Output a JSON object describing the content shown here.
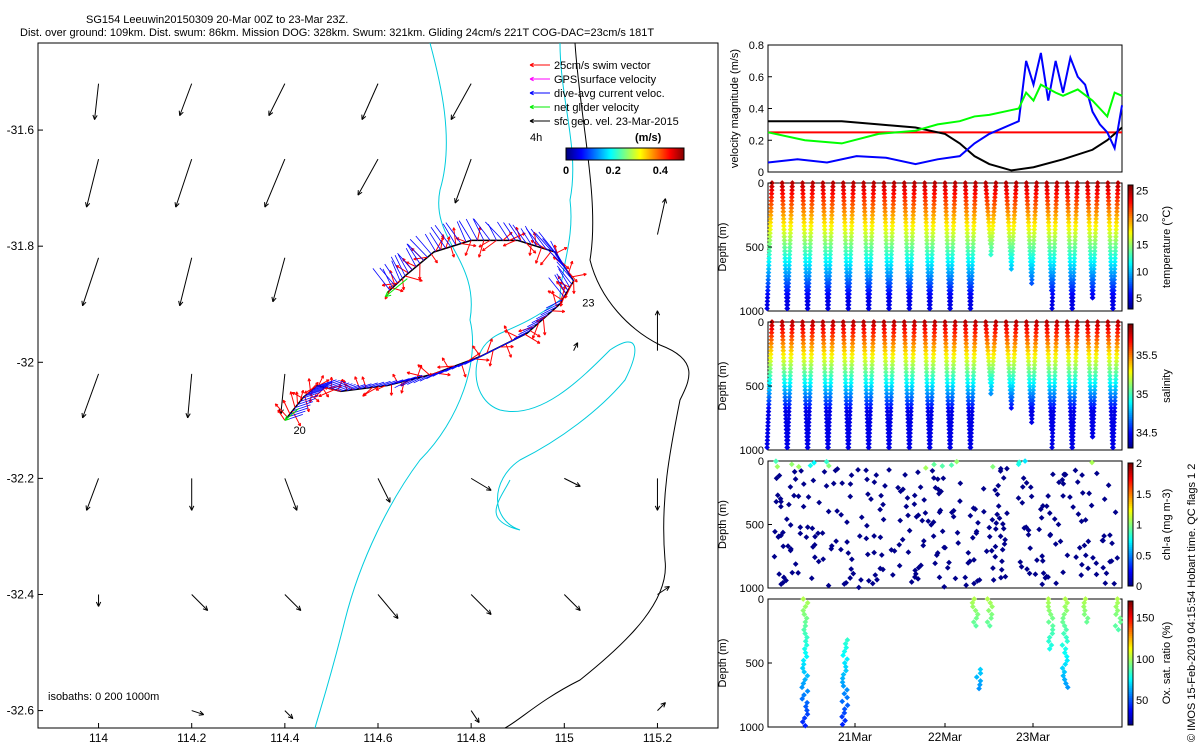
{
  "header": {
    "title": "SG154 Leeuwin20150309 20-Mar 00Z to 23-Mar 23Z.",
    "subtitle": "Dist. over ground: 109km. Dist. swum: 86km. Mission DOG: 328km. Swum: 321km. Gliding 24cm/s 221T COG-DAC=23cm/s 181T"
  },
  "side_note": "© IMOS 15-Feb-2019 04:15:54 Hobart time. QC flags 1  2",
  "chart_data": [
    {
      "type": "scatter",
      "name": "glider-track-map",
      "xticks": [
        "114",
        "114.2",
        "114.4",
        "114.6",
        "114.8",
        "115",
        "115.2"
      ],
      "yticks": [
        "-31.6",
        "-31.8",
        "-32",
        "-32.2",
        "-32.4",
        "-32.6"
      ],
      "xlim": [
        113.87,
        115.33
      ],
      "ylim": [
        -32.63,
        -31.45
      ],
      "legend": {
        "position": "top-right",
        "entries": [
          {
            "label": "25cm/s swim vector",
            "color": "#ff0000"
          },
          {
            "label": "GPS surface velocity",
            "color": "#ff00ff"
          },
          {
            "label": "dive-avg current veloc.",
            "color": "#0000ff"
          },
          {
            "label": "net glider velocity",
            "color": "#00ee00"
          },
          {
            "label": "sfc geo. vel. 23-Mar-2015",
            "color": "#000000"
          }
        ],
        "interval_label": "4h",
        "colorbar_title": "(m/s)",
        "colorbar_ticks": [
          "0",
          "0.2",
          "0.4"
        ],
        "colorbar_range": [
          0,
          0.5
        ]
      },
      "isobath_note": "isobaths: 0   200  1000m",
      "track_labels": [
        {
          "text": "20",
          "lon": 114.41,
          "lat": -32.11
        },
        {
          "text": "23",
          "lon": 115.03,
          "lat": -31.89
        }
      ],
      "track": [
        {
          "lon": 114.4,
          "lat": -32.1
        },
        {
          "lon": 114.44,
          "lat": -32.06
        },
        {
          "lon": 114.47,
          "lat": -32.04
        },
        {
          "lon": 114.52,
          "lat": -32.05
        },
        {
          "lon": 114.62,
          "lat": -32.04
        },
        {
          "lon": 114.72,
          "lat": -32.02
        },
        {
          "lon": 114.82,
          "lat": -31.99
        },
        {
          "lon": 114.92,
          "lat": -31.95
        },
        {
          "lon": 114.99,
          "lat": -31.9
        },
        {
          "lon": 115.02,
          "lat": -31.86
        },
        {
          "lon": 114.98,
          "lat": -31.81
        },
        {
          "lon": 114.9,
          "lat": -31.79
        },
        {
          "lon": 114.8,
          "lat": -31.79
        },
        {
          "lon": 114.72,
          "lat": -31.81
        },
        {
          "lon": 114.66,
          "lat": -31.85
        },
        {
          "lon": 114.62,
          "lat": -31.88
        }
      ],
      "surface_vectors": [
        {
          "lon": 114.0,
          "lat": -31.52,
          "u": -0.01,
          "v": -0.09
        },
        {
          "lon": 114.2,
          "lat": -31.52,
          "u": -0.03,
          "v": -0.08
        },
        {
          "lon": 114.4,
          "lat": -31.52,
          "u": -0.04,
          "v": -0.08
        },
        {
          "lon": 114.6,
          "lat": -31.52,
          "u": -0.04,
          "v": -0.09
        },
        {
          "lon": 114.8,
          "lat": -31.52,
          "u": -0.05,
          "v": -0.09
        },
        {
          "lon": 114.0,
          "lat": -31.65,
          "u": -0.03,
          "v": -0.12
        },
        {
          "lon": 114.2,
          "lat": -31.65,
          "u": -0.04,
          "v": -0.12
        },
        {
          "lon": 114.4,
          "lat": -31.65,
          "u": -0.05,
          "v": -0.12
        },
        {
          "lon": 114.6,
          "lat": -31.65,
          "u": -0.05,
          "v": -0.09
        },
        {
          "lon": 114.8,
          "lat": -31.65,
          "u": -0.04,
          "v": -0.11
        },
        {
          "lon": 114.0,
          "lat": -31.82,
          "u": -0.04,
          "v": -0.12
        },
        {
          "lon": 114.2,
          "lat": -31.82,
          "u": -0.03,
          "v": -0.12
        },
        {
          "lon": 114.4,
          "lat": -31.82,
          "u": -0.03,
          "v": -0.11
        },
        {
          "lon": 115.2,
          "lat": -31.78,
          "u": 0.02,
          "v": 0.09
        },
        {
          "lon": 114.0,
          "lat": -32.02,
          "u": -0.04,
          "v": -0.11
        },
        {
          "lon": 114.2,
          "lat": -32.02,
          "u": -0.01,
          "v": -0.11
        },
        {
          "lon": 114.4,
          "lat": -32.02,
          "u": -0.01,
          "v": -0.1
        },
        {
          "lon": 115.2,
          "lat": -31.98,
          "u": 0.0,
          "v": 0.1
        },
        {
          "lon": 115.02,
          "lat": -31.98,
          "u": 0.01,
          "v": 0.02
        },
        {
          "lon": 114.0,
          "lat": -32.2,
          "u": -0.03,
          "v": -0.08
        },
        {
          "lon": 114.2,
          "lat": -32.2,
          "u": 0.0,
          "v": -0.08
        },
        {
          "lon": 114.4,
          "lat": -32.2,
          "u": 0.03,
          "v": -0.08
        },
        {
          "lon": 114.6,
          "lat": -32.2,
          "u": 0.03,
          "v": -0.06
        },
        {
          "lon": 114.8,
          "lat": -32.2,
          "u": 0.05,
          "v": -0.03
        },
        {
          "lon": 115.0,
          "lat": -32.2,
          "u": 0.04,
          "v": -0.02
        },
        {
          "lon": 115.2,
          "lat": -32.2,
          "u": 0.0,
          "v": -0.08
        },
        {
          "lon": 114.0,
          "lat": -32.4,
          "u": 0.0,
          "v": -0.03
        },
        {
          "lon": 114.2,
          "lat": -32.4,
          "u": 0.04,
          "v": -0.04
        },
        {
          "lon": 114.4,
          "lat": -32.4,
          "u": 0.04,
          "v": -0.04
        },
        {
          "lon": 114.6,
          "lat": -32.4,
          "u": 0.05,
          "v": -0.06
        },
        {
          "lon": 114.8,
          "lat": -32.4,
          "u": 0.05,
          "v": -0.05
        },
        {
          "lon": 115.0,
          "lat": -32.4,
          "u": 0.04,
          "v": -0.04
        },
        {
          "lon": 115.2,
          "lat": -32.4,
          "u": 0.03,
          "v": 0.02
        },
        {
          "lon": 114.2,
          "lat": -32.6,
          "u": 0.03,
          "v": -0.01
        },
        {
          "lon": 114.4,
          "lat": -32.6,
          "u": 0.02,
          "v": -0.02
        },
        {
          "lon": 114.8,
          "lat": -32.6,
          "u": 0.02,
          "v": -0.03
        },
        {
          "lon": 115.2,
          "lat": -32.6,
          "u": 0.02,
          "v": 0.02
        }
      ]
    },
    {
      "type": "line",
      "name": "velocity-magnitude",
      "ylabel": "velocity magnitude (m/s)",
      "yticks": [
        "0",
        "0.2",
        "0.4",
        "0.6",
        "0.8"
      ],
      "ylim": [
        0,
        0.8
      ],
      "xlim": [
        0,
        96
      ],
      "series": [
        {
          "color": "#ff0000",
          "x": [
            0,
            96
          ],
          "y": [
            0.25,
            0.25
          ]
        },
        {
          "color": "#000000",
          "x": [
            0,
            10,
            20,
            30,
            40,
            48,
            52,
            56,
            60,
            66,
            72,
            80,
            88,
            92,
            96
          ],
          "y": [
            0.32,
            0.32,
            0.32,
            0.3,
            0.28,
            0.24,
            0.18,
            0.1,
            0.05,
            0.01,
            0.03,
            0.08,
            0.14,
            0.2,
            0.28
          ]
        },
        {
          "color": "#0000ff",
          "x": [
            0,
            8,
            16,
            24,
            32,
            40,
            46,
            52,
            56,
            60,
            64,
            68,
            70,
            72,
            74,
            76,
            78,
            80,
            82,
            84,
            86,
            88,
            90,
            92,
            94,
            96
          ],
          "y": [
            0.06,
            0.08,
            0.06,
            0.1,
            0.09,
            0.05,
            0.08,
            0.1,
            0.18,
            0.24,
            0.28,
            0.32,
            0.7,
            0.55,
            0.75,
            0.45,
            0.7,
            0.5,
            0.72,
            0.6,
            0.55,
            0.38,
            0.3,
            0.25,
            0.15,
            0.42
          ]
        },
        {
          "color": "#00ff00",
          "x": [
            0,
            10,
            20,
            30,
            40,
            46,
            52,
            56,
            60,
            64,
            68,
            70,
            72,
            74,
            78,
            80,
            84,
            88,
            90,
            92,
            94,
            96
          ],
          "y": [
            0.25,
            0.2,
            0.18,
            0.24,
            0.26,
            0.3,
            0.32,
            0.35,
            0.36,
            0.38,
            0.4,
            0.5,
            0.45,
            0.55,
            0.5,
            0.48,
            0.52,
            0.45,
            0.4,
            0.35,
            0.5,
            0.48
          ]
        }
      ]
    },
    {
      "type": "scatter",
      "name": "temperature-section",
      "ylabel": "Depth (m)",
      "yticks": [
        "0",
        "500",
        "1000"
      ],
      "ylim": [
        1000,
        0
      ],
      "colorbar": {
        "label": "temperature (°C)",
        "ticks": [
          "5",
          "10",
          "15",
          "20",
          "25"
        ],
        "range": [
          3,
          26
        ]
      }
    },
    {
      "type": "scatter",
      "name": "salinity-section",
      "ylabel": "Depth (m)",
      "yticks": [
        "0",
        "500",
        "1000"
      ],
      "ylim": [
        1000,
        0
      ],
      "colorbar": {
        "label": "salinity",
        "ticks": [
          "34.5",
          "35",
          "35.5"
        ],
        "range": [
          34.3,
          35.9
        ]
      }
    },
    {
      "type": "scatter",
      "name": "chlorophyll-section",
      "ylabel": "Depth (m)",
      "yticks": [
        "0",
        "500",
        "1000"
      ],
      "ylim": [
        1000,
        0
      ],
      "colorbar": {
        "label": "chl-a (mg m-3)",
        "ticks": [
          "0",
          "0.5",
          "1",
          "1.5",
          "2"
        ],
        "range": [
          0,
          2
        ]
      }
    },
    {
      "type": "scatter",
      "name": "oxygen-section",
      "ylabel": "Depth (m)",
      "yticks": [
        "0",
        "500",
        "1000"
      ],
      "ylim": [
        1000,
        0
      ],
      "xticks": [
        "21Mar",
        "22Mar",
        "23Mar"
      ],
      "colorbar": {
        "label": "Ox. sat. ratio (%)",
        "ticks": [
          "50",
          "100",
          "150"
        ],
        "range": [
          20,
          170
        ]
      }
    }
  ]
}
